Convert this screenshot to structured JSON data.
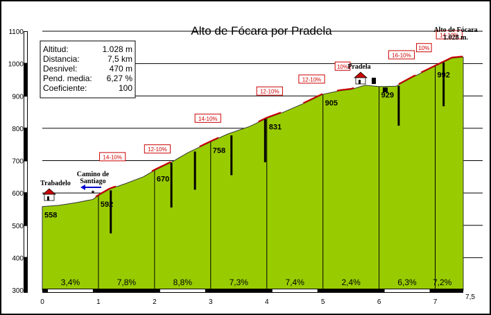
{
  "chart_data": {
    "type": "area",
    "title": "Alto de Fócara por Pradela",
    "xlabel": "",
    "ylabel": "",
    "xlim": [
      0,
      7.5
    ],
    "ylim": [
      300,
      1100
    ],
    "x_ticks": [
      "0",
      "1",
      "2",
      "3",
      "4",
      "5",
      "6",
      "7",
      "7,5"
    ],
    "y_ticks": [
      "300",
      "400",
      "500",
      "600",
      "700",
      "800",
      "900",
      "1000",
      "1100"
    ],
    "profile": [
      {
        "x": 0.0,
        "y": 558
      },
      {
        "x": 0.3,
        "y": 562
      },
      {
        "x": 0.6,
        "y": 570
      },
      {
        "x": 0.9,
        "y": 580
      },
      {
        "x": 1.0,
        "y": 592
      },
      {
        "x": 1.2,
        "y": 612
      },
      {
        "x": 1.5,
        "y": 630
      },
      {
        "x": 1.8,
        "y": 650
      },
      {
        "x": 2.0,
        "y": 670
      },
      {
        "x": 2.3,
        "y": 695
      },
      {
        "x": 2.6,
        "y": 725
      },
      {
        "x": 3.0,
        "y": 758
      },
      {
        "x": 3.3,
        "y": 782
      },
      {
        "x": 3.7,
        "y": 806
      },
      {
        "x": 4.0,
        "y": 831
      },
      {
        "x": 4.3,
        "y": 850
      },
      {
        "x": 4.7,
        "y": 880
      },
      {
        "x": 5.0,
        "y": 905
      },
      {
        "x": 5.3,
        "y": 916
      },
      {
        "x": 5.5,
        "y": 920
      },
      {
        "x": 5.75,
        "y": 933
      },
      {
        "x": 6.0,
        "y": 929
      },
      {
        "x": 6.3,
        "y": 930
      },
      {
        "x": 6.6,
        "y": 958
      },
      {
        "x": 7.0,
        "y": 992
      },
      {
        "x": 7.3,
        "y": 1017
      },
      {
        "x": 7.5,
        "y": 1020
      }
    ],
    "elevation_labels": [
      {
        "x": 0,
        "y": 558,
        "text": "558"
      },
      {
        "x": 1,
        "y": 592,
        "text": "592"
      },
      {
        "x": 2,
        "y": 670,
        "text": "670"
      },
      {
        "x": 3,
        "y": 758,
        "text": "758"
      },
      {
        "x": 4,
        "y": 831,
        "text": "831"
      },
      {
        "x": 5,
        "y": 905,
        "text": "905"
      },
      {
        "x": 6,
        "y": 929,
        "text": "929"
      },
      {
        "x": 7,
        "y": 992,
        "text": "992"
      }
    ],
    "segment_gradients": [
      "3,4%",
      "7,8%",
      "8,8%",
      "7,3%",
      "7,4%",
      "2,4%",
      "6,3%",
      "7,2%"
    ],
    "ramp_labels": [
      {
        "x": 1.25,
        "y": 710,
        "text": "14-10%"
      },
      {
        "x": 2.05,
        "y": 734,
        "text": "12-10%"
      },
      {
        "x": 2.95,
        "y": 829,
        "text": "14-10%"
      },
      {
        "x": 4.05,
        "y": 913,
        "text": "12-10%"
      },
      {
        "x": 4.8,
        "y": 950,
        "text": "12-10%"
      },
      {
        "x": 5.35,
        "y": 990,
        "text": "10%"
      },
      {
        "x": 6.4,
        "y": 1025,
        "text": "16-10%"
      },
      {
        "x": 6.8,
        "y": 1047,
        "text": "10%"
      },
      {
        "x": 7.25,
        "y": 1087,
        "text": "14-10%"
      }
    ],
    "ramp_markers": [
      {
        "x": 1.22,
        "y_top": 608,
        "y_bottom": 475
      },
      {
        "x": 2.3,
        "y_top": 693,
        "y_bottom": 555
      },
      {
        "x": 2.72,
        "y_top": 728,
        "y_bottom": 610
      },
      {
        "x": 3.37,
        "y_top": 778,
        "y_bottom": 655
      },
      {
        "x": 3.97,
        "y_top": 828,
        "y_bottom": 695
      },
      {
        "x": 6.35,
        "y_top": 931,
        "y_bottom": 808
      },
      {
        "x": 7.15,
        "y_top": 1003,
        "y_bottom": 868
      }
    ],
    "red_line_segments": [
      [
        0.95,
        1.32
      ],
      [
        1.95,
        2.3
      ],
      [
        2.8,
        3.15
      ],
      [
        3.85,
        4.25
      ],
      [
        4.65,
        5.0
      ],
      [
        5.25,
        5.55
      ],
      [
        6.35,
        6.65
      ],
      [
        6.75,
        7.5
      ]
    ],
    "places": [
      {
        "label": "Trabadelo",
        "x": 0.2,
        "y": 578
      },
      {
        "label": "Pradela",
        "x": 5.7,
        "y": 935
      },
      {
        "label": "Alto de Fócara",
        "sublabel": "1.028 m.",
        "x": 7.3,
        "y": 1020
      }
    ],
    "camino_label": [
      "Camino de",
      "Santiago"
    ],
    "stats_box": {
      "rows": [
        {
          "label": "Altitud:",
          "value": "1.028 m"
        },
        {
          "label": "Distancia:",
          "value": "7,5 km"
        },
        {
          "label": "Desnivel:",
          "value": "470 m"
        },
        {
          "label": "Pend. media:",
          "value": "6,27 %"
        },
        {
          "label": "Coeficiente:",
          "value": "100"
        }
      ]
    },
    "colors": {
      "fill": "#99cc00",
      "grid": "#000000",
      "ramp_red": "#cc0000",
      "ramp_box_bg": "#ffffff",
      "camino_arrow": "#0000cc",
      "house_roof": "#cc0000"
    }
  }
}
